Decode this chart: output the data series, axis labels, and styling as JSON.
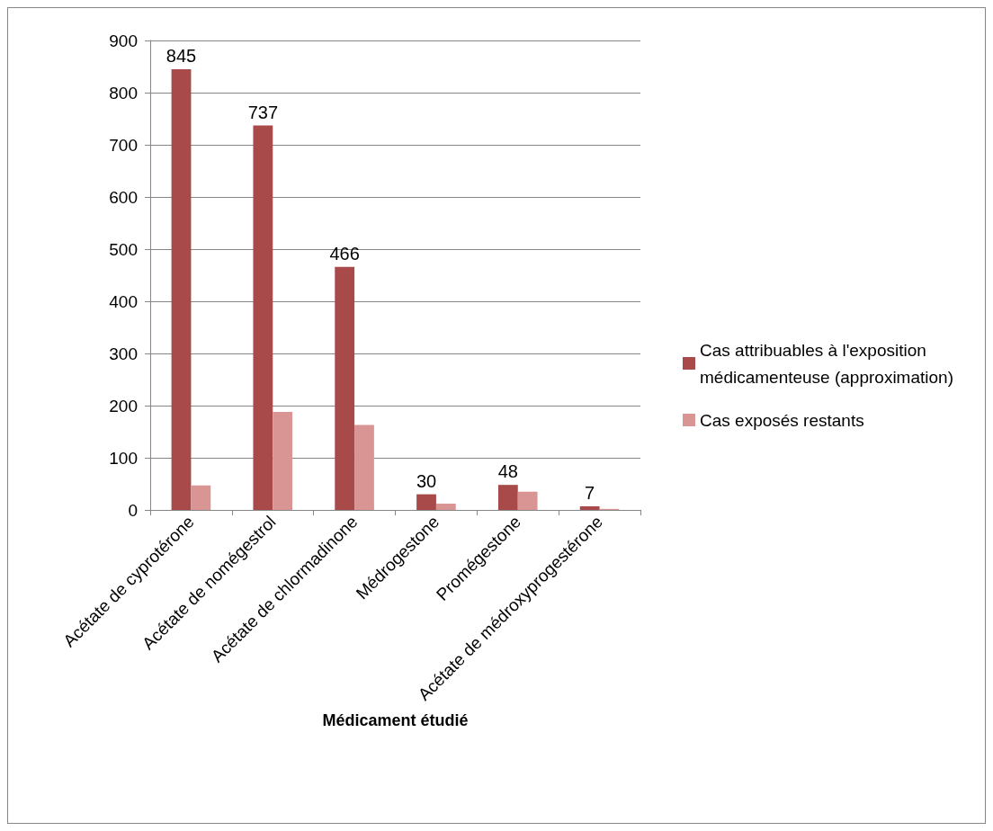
{
  "chart_data": {
    "type": "bar",
    "xlabel": "Médicament étudié",
    "categories": [
      "Acétate de cyprotérone",
      "Acétate de nomégestrol",
      "Acétate de chlormadinone",
      "Médrogestone",
      "Promégestone",
      "Acétate de médroxyprogestérone"
    ],
    "series": [
      {
        "name": "Cas attribuables à l'exposition médicamenteuse (approximation)",
        "color": "#a94a4a",
        "values": [
          845,
          737,
          466,
          30,
          48,
          7
        ],
        "value_labels": [
          "845",
          "737",
          "466",
          "30",
          "48",
          "7"
        ]
      },
      {
        "name": "Cas exposés restants",
        "color": "#d99594",
        "values": [
          47,
          188,
          163,
          12,
          35,
          2
        ]
      }
    ],
    "ylim": [
      0,
      900
    ],
    "yticks": [
      0,
      100,
      200,
      300,
      400,
      500,
      600,
      700,
      800,
      900
    ],
    "grid": "y",
    "legend": "right"
  }
}
